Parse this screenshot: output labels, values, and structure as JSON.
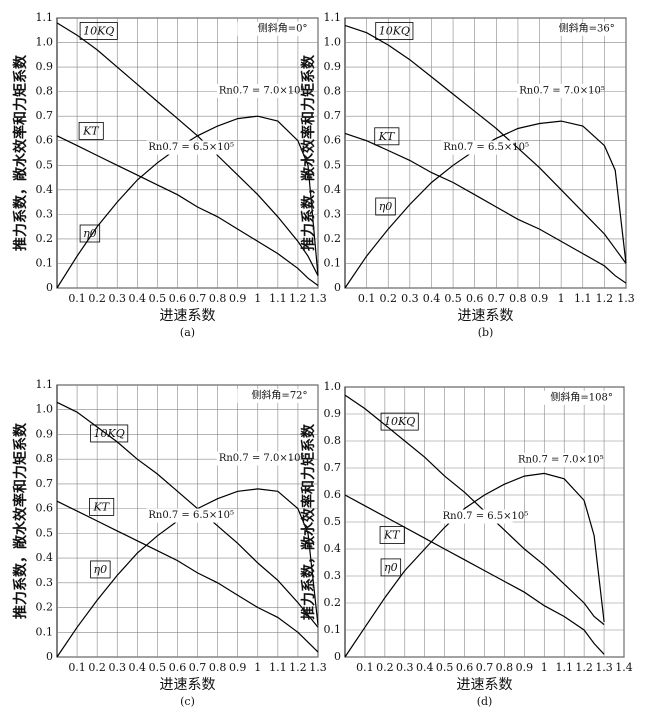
{
  "chart_data": [
    {
      "type": "line",
      "subtitle": "(a)",
      "x_label": "进速系数",
      "y_label": "推力系数，敞水效率和力矩系数",
      "annotations": [
        "侧斜角=0°",
        "Rn0.7 = 7.0×10⁵",
        "Rn0.7 = 6.5×10⁵"
      ],
      "x": [
        0,
        0.1,
        0.2,
        0.3,
        0.4,
        0.5,
        0.6,
        0.7,
        0.8,
        0.9,
        1.0,
        1.1,
        1.2,
        1.25,
        1.3
      ],
      "series": [
        {
          "name": "10KQ",
          "color": "#000000",
          "values": [
            1.08,
            1.03,
            0.97,
            0.9,
            0.83,
            0.76,
            0.69,
            0.62,
            0.54,
            0.46,
            0.38,
            0.29,
            0.19,
            0.13,
            0.05
          ]
        },
        {
          "name": "KT",
          "color": "#000000",
          "values": [
            0.62,
            0.58,
            0.54,
            0.5,
            0.46,
            0.42,
            0.38,
            0.33,
            0.29,
            0.24,
            0.19,
            0.14,
            0.08,
            0.04,
            0.01
          ]
        },
        {
          "name": "η0",
          "color": "#000000",
          "values": [
            0,
            0.13,
            0.25,
            0.35,
            0.44,
            0.51,
            0.57,
            0.62,
            0.66,
            0.69,
            0.7,
            0.68,
            0.6,
            0.5,
            0.05
          ]
        }
      ],
      "xlim": [
        0,
        1.3
      ],
      "xticks": [
        0.1,
        0.2,
        0.3,
        0.4,
        0.5,
        0.6,
        0.7,
        0.8,
        0.9,
        1.0,
        1.1,
        1.2,
        1.3
      ],
      "ylim": [
        0,
        1.1
      ],
      "yticks": [
        0,
        0.1,
        0.2,
        0.3,
        0.4,
        0.5,
        0.6,
        0.7,
        0.8,
        0.9,
        {
          "value": 1,
          "label": "1.0"
        },
        1.1
      ],
      "grid": true
    },
    {
      "type": "line",
      "subtitle": "(b)",
      "x_label": "进速系数",
      "y_label": "推力系数，敞水效率和力矩系数",
      "annotations": [
        "侧斜角=36°",
        "Rn0.7 = 7.0×10⁵",
        "Rn0.7 = 6.5×10⁵"
      ],
      "x": [
        0,
        0.1,
        0.2,
        0.3,
        0.4,
        0.5,
        0.6,
        0.7,
        0.8,
        0.9,
        1.0,
        1.1,
        1.2,
        1.25,
        1.3
      ],
      "series": [
        {
          "name": "10KQ",
          "color": "#000000",
          "values": [
            1.07,
            1.04,
            0.99,
            0.93,
            0.86,
            0.79,
            0.72,
            0.65,
            0.57,
            0.49,
            0.4,
            0.31,
            0.22,
            0.16,
            0.1
          ]
        },
        {
          "name": "KT",
          "color": "#000000",
          "values": [
            0.63,
            0.6,
            0.56,
            0.52,
            0.47,
            0.43,
            0.38,
            0.33,
            0.28,
            0.24,
            0.19,
            0.14,
            0.09,
            0.05,
            0.02
          ]
        },
        {
          "name": "η0",
          "color": "#000000",
          "values": [
            0,
            0.13,
            0.24,
            0.34,
            0.43,
            0.5,
            0.56,
            0.61,
            0.65,
            0.67,
            0.68,
            0.66,
            0.58,
            0.48,
            0.1
          ]
        }
      ],
      "xlim": [
        0,
        1.3
      ],
      "xticks": [
        0.1,
        0.2,
        0.3,
        0.4,
        0.5,
        0.6,
        0.7,
        0.8,
        0.9,
        1.0,
        1.1,
        1.2,
        1.3
      ],
      "ylim": [
        0,
        1.1
      ],
      "yticks": [
        0,
        0.1,
        0.2,
        0.3,
        0.4,
        0.5,
        0.6,
        0.7,
        0.8,
        0.9,
        {
          "value": 1,
          "label": "1.0"
        },
        1.1
      ],
      "grid": true
    },
    {
      "type": "line",
      "subtitle": "(c)",
      "x_label": "进速系数",
      "y_label": "推力系数，敞水效率和力矩系数",
      "annotations": [
        "侧斜角=72°",
        "Rn0.7 = 7.0×10⁵",
        "Rn0.7 = 6.5×10⁵"
      ],
      "x": [
        0,
        0.1,
        0.2,
        0.3,
        0.4,
        0.5,
        0.6,
        0.7,
        0.8,
        0.9,
        1.0,
        1.1,
        1.2,
        1.25,
        1.3
      ],
      "series": [
        {
          "name": "10KQ",
          "color": "#000000",
          "values": [
            1.03,
            0.99,
            0.93,
            0.87,
            0.8,
            0.74,
            0.67,
            0.6,
            0.53,
            0.46,
            0.38,
            0.31,
            0.22,
            0.17,
            0.12
          ]
        },
        {
          "name": "KT",
          "color": "#000000",
          "values": [
            0.63,
            0.59,
            0.55,
            0.51,
            0.47,
            0.43,
            0.39,
            0.34,
            0.3,
            0.25,
            0.2,
            0.16,
            0.1,
            0.06,
            0.02
          ]
        },
        {
          "name": "η0",
          "color": "#000000",
          "values": [
            0,
            0.12,
            0.23,
            0.33,
            0.42,
            0.49,
            0.55,
            0.6,
            0.64,
            0.67,
            0.68,
            0.67,
            0.6,
            0.5,
            0.13
          ]
        }
      ],
      "xlim": [
        0,
        1.3
      ],
      "xticks": [
        0.1,
        0.2,
        0.3,
        0.4,
        0.5,
        0.6,
        0.7,
        0.8,
        0.9,
        1.0,
        1.1,
        1.2,
        1.3
      ],
      "ylim": [
        0,
        1.1
      ],
      "yticks": [
        0,
        0.1,
        0.2,
        0.3,
        0.4,
        0.5,
        0.6,
        0.7,
        0.8,
        0.9,
        {
          "value": 1,
          "label": "1.0"
        },
        1.1
      ],
      "grid": true
    },
    {
      "type": "line",
      "subtitle": "(d)",
      "x_label": "进速系数",
      "y_label": "推力系数，敞水效率和力矩系数",
      "annotations": [
        "侧斜角=108°",
        "Rn0.7 = 7.0×10⁵",
        "Rn0.7 = 6.5×10⁵"
      ],
      "x": [
        0,
        0.1,
        0.2,
        0.3,
        0.4,
        0.5,
        0.6,
        0.7,
        0.8,
        0.9,
        1.0,
        1.1,
        1.2,
        1.25,
        1.3
      ],
      "series": [
        {
          "name": "10KQ",
          "color": "#000000",
          "values": [
            0.97,
            0.92,
            0.86,
            0.8,
            0.74,
            0.67,
            0.61,
            0.54,
            0.47,
            0.4,
            0.34,
            0.27,
            0.2,
            0.15,
            0.12
          ]
        },
        {
          "name": "KT",
          "color": "#000000",
          "values": [
            0.6,
            0.56,
            0.52,
            0.48,
            0.44,
            0.4,
            0.36,
            0.32,
            0.28,
            0.24,
            0.19,
            0.15,
            0.1,
            0.05,
            0.01
          ]
        },
        {
          "name": "η0",
          "color": "#000000",
          "values": [
            0,
            0.11,
            0.22,
            0.32,
            0.4,
            0.48,
            0.55,
            0.6,
            0.64,
            0.67,
            0.68,
            0.66,
            0.58,
            0.45,
            0.13
          ]
        }
      ],
      "xlim": [
        0,
        1.4
      ],
      "xticks": [
        0.1,
        0.2,
        0.3,
        0.4,
        0.5,
        0.6,
        0.7,
        0.8,
        0.9,
        1.0,
        1.1,
        1.2,
        1.3,
        1.4
      ],
      "ylim": [
        0,
        1.0
      ],
      "yticks": [
        0,
        0.1,
        0.2,
        0.3,
        0.4,
        0.5,
        0.6,
        0.7,
        0.8,
        0.9,
        {
          "value": 1,
          "label": "1.0"
        }
      ],
      "grid": true
    }
  ]
}
